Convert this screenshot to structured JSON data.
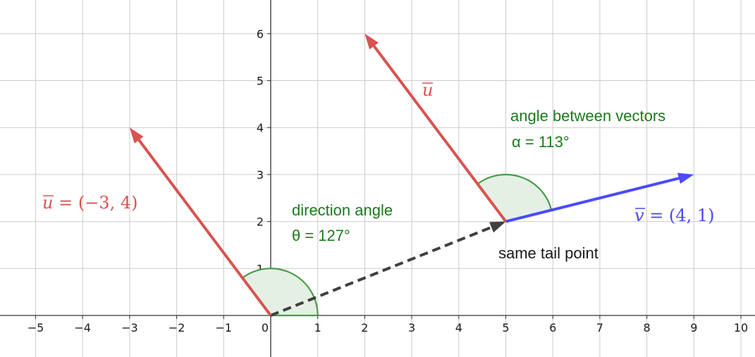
{
  "axes": {
    "x_ticks": [
      "−5",
      "−4",
      "−3",
      "−2",
      "−1",
      "0",
      "1",
      "2",
      "3",
      "4",
      "5",
      "6",
      "7",
      "8",
      "9",
      "10"
    ],
    "y_ticks": [
      "1",
      "2",
      "3",
      "4",
      "5",
      "6"
    ],
    "x_range": [
      -5.8,
      10.3
    ],
    "y_range": [
      -0.9,
      6.7
    ]
  },
  "vectors": {
    "u_origin": {
      "from": [
        0,
        0
      ],
      "to": [
        -3,
        4
      ],
      "color": "#d9534f"
    },
    "u_shifted": {
      "from": [
        5,
        2
      ],
      "to": [
        2,
        6
      ],
      "color": "#d9534f"
    },
    "v": {
      "from": [
        5,
        2
      ],
      "to": [
        9,
        3
      ],
      "color": "#4a4aff"
    },
    "dashed": {
      "from": [
        0,
        0
      ],
      "to": [
        5,
        2
      ],
      "color": "#404040"
    }
  },
  "angles": {
    "theta": {
      "center": [
        0,
        0
      ],
      "radius": 1,
      "start_deg": 0,
      "end_deg": 127
    },
    "alpha": {
      "center": [
        5,
        2
      ],
      "radius": 1,
      "start_deg": 14,
      "end_deg": 127
    }
  },
  "labels": {
    "u_vector_label": "u = (−3, 4)",
    "u_name_left": "u",
    "u_rest_left": " = (−3, 4)",
    "u_name_right": "u",
    "v_name": "v",
    "v_rest": " = (4, 1)",
    "direction_angle": "direction angle",
    "theta_value": "θ = 127°",
    "angle_between": "angle between vectors",
    "alpha_value": "α = 113°",
    "same_tail": "same tail point"
  },
  "colors": {
    "red": "#d9534f",
    "blue": "#4a4aff",
    "green": "#1a7a1a",
    "arc_fill": "#e5f0e5",
    "arc_stroke": "#4a9a4a",
    "grid": "#cccccc"
  }
}
